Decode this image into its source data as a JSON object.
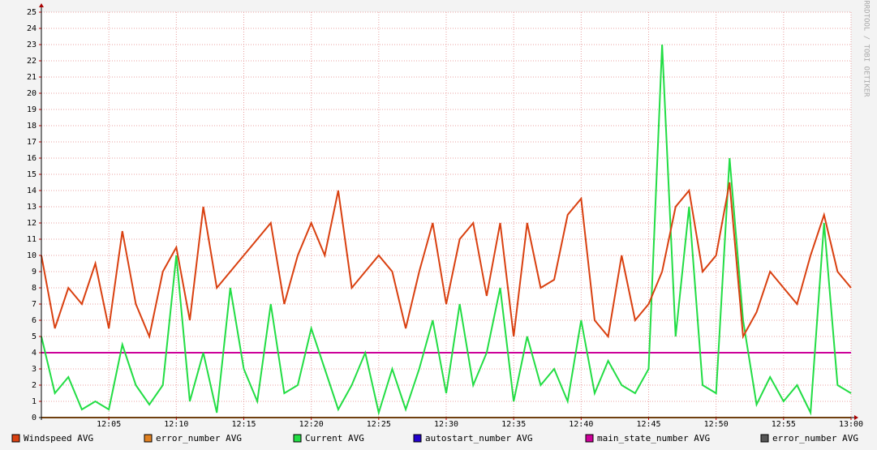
{
  "chart_data": {
    "type": "line",
    "watermark": "RRDTOOL / TOBI OETIKER",
    "x": [
      0,
      1,
      2,
      3,
      4,
      5,
      6,
      7,
      8,
      9,
      10,
      11,
      12,
      13,
      14,
      15,
      16,
      17,
      18,
      19,
      20,
      21,
      22,
      23,
      24,
      25,
      26,
      27,
      28,
      29,
      30,
      31,
      32,
      33,
      34,
      35,
      36,
      37,
      38,
      39,
      40,
      41,
      42,
      43,
      44,
      45,
      46,
      47,
      48,
      49,
      50,
      51,
      52,
      53,
      54,
      55,
      56,
      57,
      58,
      59,
      60
    ],
    "xlim": [
      0,
      60
    ],
    "xticks": [
      {
        "value": 5,
        "label": "12:05"
      },
      {
        "value": 10,
        "label": "12:10"
      },
      {
        "value": 15,
        "label": "12:15"
      },
      {
        "value": 20,
        "label": "12:20"
      },
      {
        "value": 25,
        "label": "12:25"
      },
      {
        "value": 30,
        "label": "12:30"
      },
      {
        "value": 35,
        "label": "12:35"
      },
      {
        "value": 40,
        "label": "12:40"
      },
      {
        "value": 45,
        "label": "12:45"
      },
      {
        "value": 50,
        "label": "12:50"
      },
      {
        "value": 55,
        "label": "12:55"
      },
      {
        "value": 60,
        "label": "13:00"
      }
    ],
    "ylim": [
      0,
      25
    ],
    "yticks": [
      0,
      1,
      2,
      3,
      4,
      5,
      6,
      7,
      8,
      9,
      10,
      11,
      12,
      13,
      14,
      15,
      16,
      17,
      18,
      19,
      20,
      21,
      22,
      23,
      24,
      25
    ],
    "grid": true,
    "series": [
      {
        "name": "Windspeed AVG",
        "color": "#d94010",
        "values": [
          10,
          5.5,
          8,
          7,
          9.5,
          5.5,
          11.5,
          7,
          5,
          9,
          10.5,
          6,
          13,
          8,
          9,
          10,
          11,
          12,
          7,
          10,
          12,
          10,
          14,
          8,
          9,
          10,
          9,
          5.5,
          9,
          12,
          7,
          11,
          12,
          7.5,
          12,
          5,
          12,
          8,
          8.5,
          12.5,
          13.5,
          6,
          5,
          10,
          6,
          7,
          9,
          13,
          14,
          9,
          10,
          14.5,
          5,
          6.5,
          9,
          8,
          7,
          10,
          12.5,
          9,
          8
        ]
      },
      {
        "name": "error_number AVG",
        "color": "#e08020",
        "values": [
          0,
          0,
          0,
          0,
          0,
          0,
          0,
          0,
          0,
          0,
          0,
          0,
          0,
          0,
          0,
          0,
          0,
          0,
          0,
          0,
          0,
          0,
          0,
          0,
          0,
          0,
          0,
          0,
          0,
          0,
          0,
          0,
          0,
          0,
          0,
          0,
          0,
          0,
          0,
          0,
          0,
          0,
          0,
          0,
          0,
          0,
          0,
          0,
          0,
          0,
          0,
          0,
          0,
          0,
          0,
          0,
          0,
          0,
          0,
          0,
          0
        ]
      },
      {
        "name": "Current AVG",
        "color": "#22dd44",
        "values": [
          5,
          1.5,
          2.5,
          0.5,
          1,
          0.5,
          4.5,
          2,
          0.8,
          2,
          10,
          1,
          4,
          0.3,
          8,
          3,
          1,
          7,
          1.5,
          2,
          5.5,
          3,
          0.5,
          2,
          4,
          0.3,
          3,
          0.5,
          3,
          6,
          1.5,
          7,
          2,
          4,
          8,
          1,
          5,
          2,
          3,
          1,
          6,
          1.5,
          3.5,
          2,
          1.5,
          3,
          23,
          5,
          13,
          2,
          1.5,
          16,
          6,
          0.8,
          2.5,
          1,
          2,
          0.3,
          12,
          2,
          1.5
        ]
      },
      {
        "name": "autostart_number AVG",
        "color": "#2200cc",
        "values": [
          0,
          0,
          0,
          0,
          0,
          0,
          0,
          0,
          0,
          0,
          0,
          0,
          0,
          0,
          0,
          0,
          0,
          0,
          0,
          0,
          0,
          0,
          0,
          0,
          0,
          0,
          0,
          0,
          0,
          0,
          0,
          0,
          0,
          0,
          0,
          0,
          0,
          0,
          0,
          0,
          0,
          0,
          0,
          0,
          0,
          0,
          0,
          0,
          0,
          0,
          0,
          0,
          0,
          0,
          0,
          0,
          0,
          0,
          0,
          0,
          0
        ]
      },
      {
        "name": "main_state_number AVG",
        "color": "#cc0099",
        "values": [
          4,
          4,
          4,
          4,
          4,
          4,
          4,
          4,
          4,
          4,
          4,
          4,
          4,
          4,
          4,
          4,
          4,
          4,
          4,
          4,
          4,
          4,
          4,
          4,
          4,
          4,
          4,
          4,
          4,
          4,
          4,
          4,
          4,
          4,
          4,
          4,
          4,
          4,
          4,
          4,
          4,
          4,
          4,
          4,
          4,
          4,
          4,
          4,
          4,
          4,
          4,
          4,
          4,
          4,
          4,
          4,
          4,
          4,
          4,
          4,
          4
        ]
      },
      {
        "name": "error_number AVG",
        "color": "#555555",
        "values": [
          0,
          0,
          0,
          0,
          0,
          0,
          0,
          0,
          0,
          0,
          0,
          0,
          0,
          0,
          0,
          0,
          0,
          0,
          0,
          0,
          0,
          0,
          0,
          0,
          0,
          0,
          0,
          0,
          0,
          0,
          0,
          0,
          0,
          0,
          0,
          0,
          0,
          0,
          0,
          0,
          0,
          0,
          0,
          0,
          0,
          0,
          0,
          0,
          0,
          0,
          0,
          0,
          0,
          0,
          0,
          0,
          0,
          0,
          0,
          0,
          0
        ]
      }
    ]
  }
}
